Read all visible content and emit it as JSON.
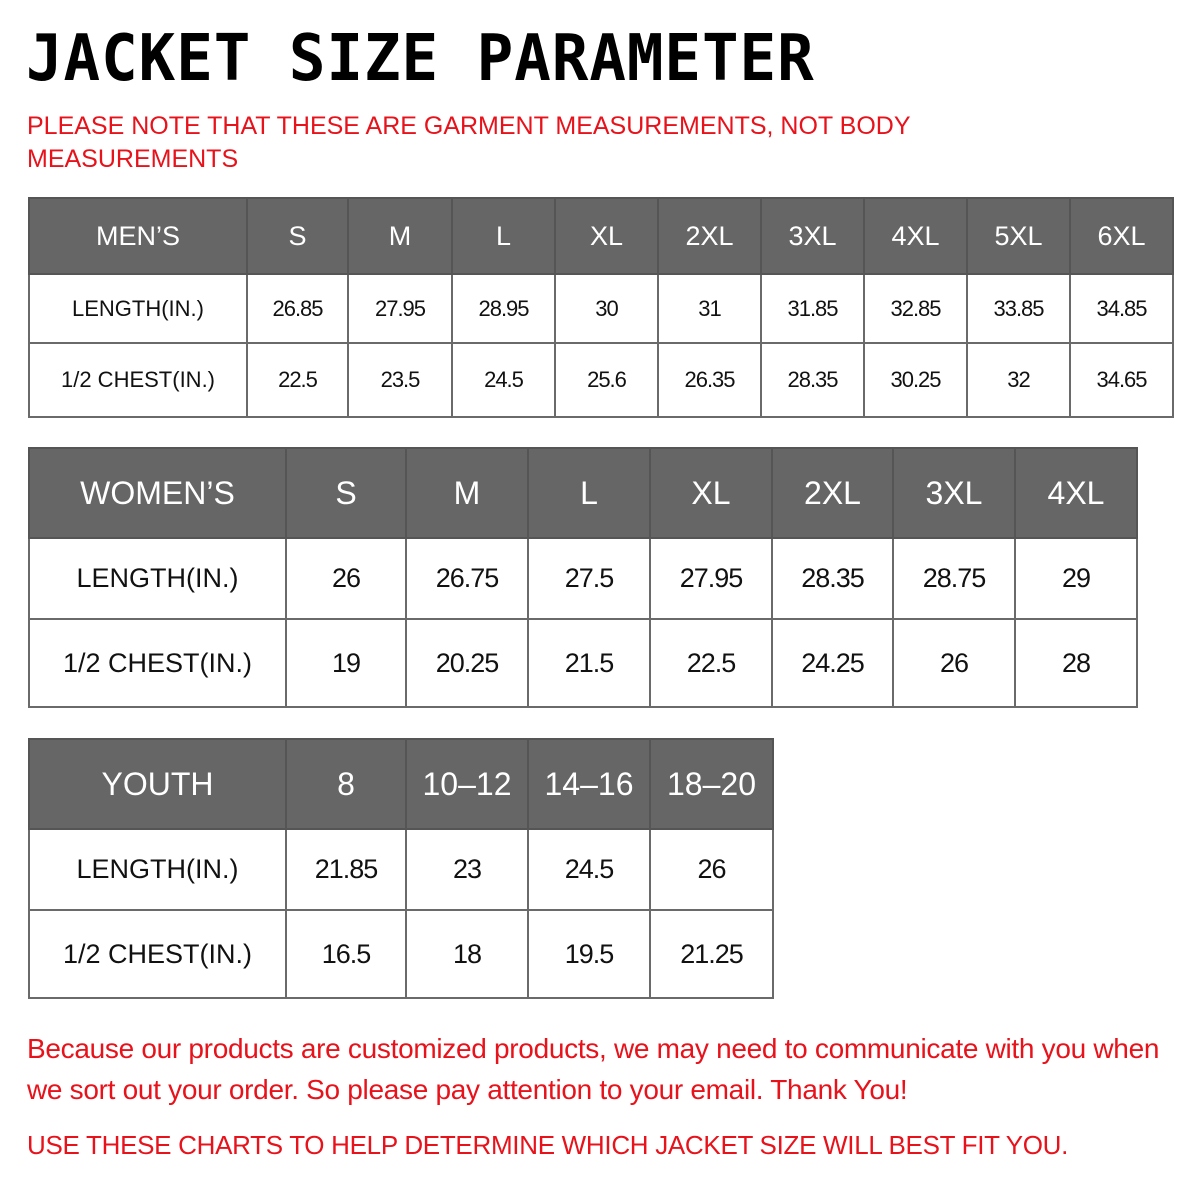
{
  "title": "JACKET SIZE PARAMETER",
  "note": "PLEASE NOTE THAT THESE ARE GARMENT MEASUREMENTS, NOT BODY MEASUREMENTS",
  "colors": {
    "header_bg": "#666666",
    "accent_red": "#e8121b"
  },
  "tables": [
    {
      "id": "mens",
      "header": [
        "MEN’S",
        "S",
        "M",
        "L",
        "XL",
        "2XL",
        "3XL",
        "4XL",
        "5XL",
        "6XL"
      ],
      "rows": [
        [
          "LENGTH(IN.)",
          "26.85",
          "27.95",
          "28.95",
          "30",
          "31",
          "31.85",
          "32.85",
          "33.85",
          "34.85"
        ],
        [
          "1/2 CHEST(IN.)",
          "22.5",
          "23.5",
          "24.5",
          "25.6",
          "26.35",
          "28.35",
          "30.25",
          "32",
          "34.65"
        ]
      ]
    },
    {
      "id": "womens",
      "header": [
        "WOMEN’S",
        "S",
        "M",
        "L",
        "XL",
        "2XL",
        "3XL",
        "4XL"
      ],
      "rows": [
        [
          "LENGTH(IN.)",
          "26",
          "26.75",
          "27.5",
          "27.95",
          "28.35",
          "28.75",
          "29"
        ],
        [
          "1/2 CHEST(IN.)",
          "19",
          "20.25",
          "21.5",
          "22.5",
          "24.25",
          "26",
          "28"
        ]
      ]
    },
    {
      "id": "youth",
      "header": [
        "YOUTH",
        "8",
        "10–12",
        "14–16",
        "18–20"
      ],
      "rows": [
        [
          "LENGTH(IN.)",
          "21.85",
          "23",
          "24.5",
          "26"
        ],
        [
          "1/2 CHEST(IN.)",
          "16.5",
          "18",
          "19.5",
          "21.25"
        ]
      ]
    }
  ],
  "footer": {
    "message": "Because our products are customized products, we may need to communicate with you when we sort out your order. So please pay attention to your email. Thank You!",
    "help": "USE THESE CHARTS TO HELP DETERMINE WHICH JACKET SIZE WILL BEST FIT YOU."
  }
}
